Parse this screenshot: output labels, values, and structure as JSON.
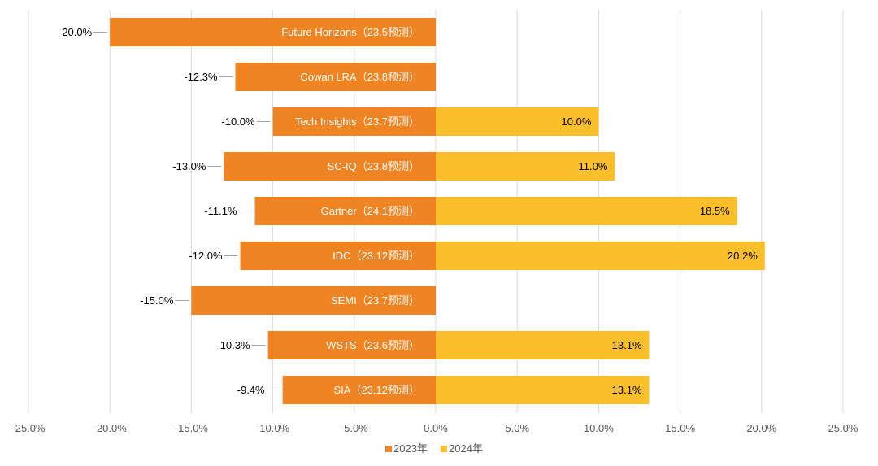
{
  "chart_data": {
    "type": "bar",
    "orientation": "horizontal",
    "title": "",
    "xlabel": "",
    "ylabel": "",
    "xlim": [
      -25,
      25
    ],
    "x_ticks": [
      "-25.0%",
      "-20.0%",
      "-15.0%",
      "-10.0%",
      "-5.0%",
      "0.0%",
      "5.0%",
      "10.0%",
      "15.0%",
      "20.0%",
      "25.0%"
    ],
    "categories": [
      "Future Horizons（23.5预测）",
      "Cowan LRA（23.8预测）",
      "Tech Insights（23.7预测）",
      "SC-IQ（23.8预测）",
      "Gartner（24.1预测）",
      "IDC（23.12预测）",
      "SEMI（23.7预测）",
      "WSTS（23.6预测）",
      "SIA（23.12预测）"
    ],
    "series": [
      {
        "name": "2023年",
        "color": "#F08423",
        "values": [
          -20.0,
          -12.3,
          -10.0,
          -13.0,
          -11.1,
          -12.0,
          -15.0,
          -10.3,
          -9.4
        ],
        "labels": [
          "-20.0%",
          "-12.3%",
          "-10.0%",
          "-13.0%",
          "-11.1%",
          "-12.0%",
          "-15.0%",
          "-10.3%",
          "-9.4%"
        ]
      },
      {
        "name": "2024年",
        "color": "#FBBF2C",
        "values": [
          null,
          null,
          10.0,
          11.0,
          18.5,
          20.2,
          null,
          13.1,
          13.1
        ],
        "labels": [
          "",
          "",
          "10.0%",
          "11.0%",
          "18.5%",
          "20.2%",
          "",
          "13.1%",
          "13.1%"
        ]
      }
    ],
    "legend": {
      "position": "bottom",
      "entries": [
        "2023年",
        "2024年"
      ]
    },
    "grid": true
  }
}
